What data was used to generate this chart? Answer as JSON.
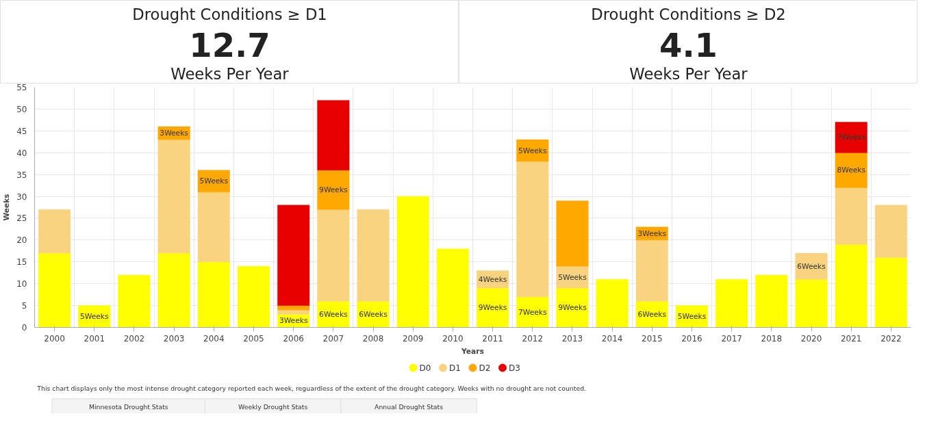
{
  "chart_data": [
    {
      "type": "other",
      "title": "Drought Conditions ≥ D1",
      "values": [
        12.7
      ],
      "data_labels": true,
      "annotations": [
        "Weeks Per Year"
      ]
    },
    {
      "type": "other",
      "title": "Drought Conditions ≥ D2",
      "values": [
        4.1
      ],
      "data_labels": true,
      "annotations": [
        "Weeks Per Year"
      ]
    },
    {
      "type": "bar",
      "stacked": true,
      "xlabel": "Years",
      "ylabel": "Weeks",
      "categories": [
        "2000",
        "2001",
        "2002",
        "2003",
        "2004",
        "2005",
        "2006",
        "2007",
        "2008",
        "2009",
        "2010",
        "2011",
        "2012",
        "2013",
        "2014",
        "2015",
        "2016",
        "2017",
        "2018",
        "2020",
        "2021",
        "2022"
      ],
      "series": [
        {
          "name": "D0",
          "color": "#ffff00",
          "values": [
            17,
            5,
            12,
            17,
            15,
            14,
            3,
            6,
            6,
            30,
            18,
            9,
            7,
            9,
            11,
            6,
            5,
            11,
            12,
            11,
            19,
            16
          ],
          "value_labels": [
            null,
            "5Weeks",
            null,
            null,
            null,
            null,
            "3Weeks",
            "6Weeks",
            "6Weeks",
            null,
            null,
            "9Weeks",
            "7Weeks",
            "9Weeks",
            null,
            "6Weeks",
            "5Weeks",
            null,
            null,
            null,
            null,
            null
          ]
        },
        {
          "name": "D1",
          "color": "#fad380",
          "values": [
            10,
            null,
            null,
            26,
            16,
            null,
            1,
            21,
            21,
            null,
            null,
            4,
            31,
            5,
            null,
            14,
            null,
            null,
            null,
            6,
            13,
            12
          ],
          "value_labels": [
            null,
            null,
            null,
            null,
            null,
            null,
            null,
            null,
            null,
            null,
            null,
            "4Weeks",
            null,
            "5Weeks",
            null,
            null,
            null,
            null,
            null,
            "6Weeks",
            null,
            null
          ]
        },
        {
          "name": "D2",
          "color": "#ffa800",
          "values": [
            null,
            null,
            null,
            3,
            5,
            null,
            1,
            9,
            null,
            null,
            null,
            null,
            5,
            15,
            null,
            3,
            null,
            null,
            null,
            null,
            8,
            null
          ],
          "value_labels": [
            null,
            null,
            null,
            "3Weeks",
            "5Weeks",
            null,
            null,
            "9Weeks",
            null,
            null,
            null,
            null,
            "5Weeks",
            null,
            null,
            "3Weeks",
            null,
            null,
            null,
            null,
            "8Weeks",
            null
          ]
        },
        {
          "name": "D3",
          "color": "#e60000",
          "values": [
            null,
            null,
            null,
            null,
            null,
            null,
            23,
            16,
            null,
            null,
            null,
            null,
            null,
            null,
            null,
            null,
            null,
            null,
            null,
            null,
            7,
            null
          ],
          "value_labels": [
            null,
            null,
            null,
            null,
            null,
            null,
            null,
            null,
            null,
            null,
            null,
            null,
            null,
            null,
            null,
            null,
            null,
            null,
            null,
            null,
            "7Weeks",
            null
          ]
        }
      ],
      "ylim": [
        0,
        55
      ],
      "yticks": [
        0,
        5,
        10,
        15,
        20,
        25,
        30,
        35,
        40,
        45,
        50,
        55
      ],
      "grid": true,
      "legend": "bottom",
      "marker": "circle",
      "annotations": [
        "This chart displays only the most intense drought category reported each week, reguardless of the extent of the drought category. Weeks with no drought are not counted.",
        "Minnesota Drought Stats",
        "Weekly Drought Stats",
        "Annual Drought Stats"
      ]
    }
  ]
}
